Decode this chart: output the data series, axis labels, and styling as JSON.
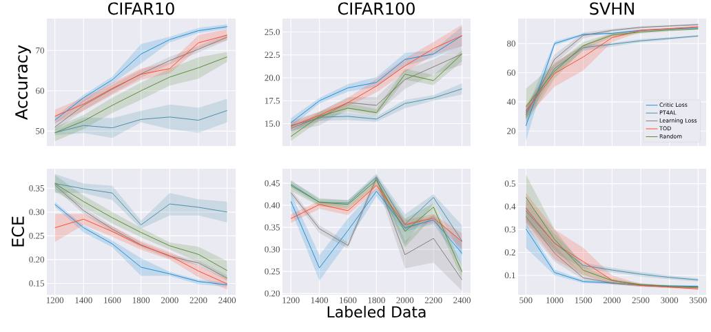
{
  "chart_data": [
    {
      "type": "line",
      "title": "CIFAR10",
      "ylabel": "Accuracy",
      "grid": true,
      "marker": "none",
      "line_style": "solid",
      "tick_labels": "y",
      "legend": false,
      "x": [
        1200,
        1400,
        1600,
        1800,
        2000,
        2200,
        2400
      ],
      "xlim": [
        1144,
        2459
      ],
      "xticks": [
        1200,
        1400,
        1600,
        1800,
        2000,
        2200,
        2400
      ],
      "ylim": [
        46.3,
        77.9
      ],
      "yticks": [
        50,
        60,
        70
      ],
      "series": [
        {
          "color": "#1f8fd8",
          "values": [
            52.7,
            58.3,
            62.7,
            69.1,
            72.7,
            74.9,
            75.9
          ],
          "lower": [
            51.8,
            57.3,
            61.8,
            66.8,
            72.0,
            74.3,
            75.4
          ],
          "upper": [
            53.5,
            59.0,
            63.5,
            71.6,
            73.4,
            75.6,
            76.5
          ]
        },
        {
          "color": "#4c8fa8",
          "values": [
            49.6,
            51.4,
            50.8,
            52.9,
            53.5,
            52.7,
            55.1
          ],
          "lower": [
            49.0,
            49.5,
            48.3,
            52.2,
            50.5,
            49.6,
            52.2
          ],
          "upper": [
            50.3,
            53.4,
            53.2,
            55.0,
            56.6,
            55.8,
            58.0
          ]
        },
        {
          "color": "#808080",
          "values": [
            51.0,
            56.4,
            60.4,
            64.2,
            67.5,
            70.3,
            73.3
          ],
          "lower": [
            50.0,
            55.2,
            59.3,
            63.2,
            66.6,
            69.5,
            72.5
          ],
          "upper": [
            52.0,
            57.6,
            61.5,
            65.2,
            68.4,
            71.1,
            74.1
          ]
        },
        {
          "color": "#ff4c2c",
          "values": [
            53.7,
            56.7,
            60.6,
            64.1,
            65.5,
            71.9,
            73.8
          ],
          "lower": [
            52.0,
            55.0,
            59.0,
            62.7,
            64.3,
            70.5,
            72.5
          ],
          "upper": [
            55.3,
            58.3,
            62.0,
            65.5,
            67.0,
            73.8,
            75.3
          ]
        },
        {
          "color": "#5b8c3a",
          "values": [
            49.6,
            52.5,
            56.4,
            60.0,
            63.4,
            65.7,
            68.4
          ],
          "lower": [
            47.5,
            50.5,
            54.5,
            57.8,
            61.3,
            63.0,
            67.2
          ],
          "upper": [
            51.0,
            54.0,
            58.3,
            62.0,
            65.5,
            68.3,
            69.6
          ]
        }
      ]
    },
    {
      "type": "line",
      "title": "CIFAR100",
      "grid": true,
      "marker": "none",
      "line_style": "solid",
      "tick_labels": "y",
      "legend": false,
      "x": [
        1200,
        1400,
        1600,
        1800,
        2000,
        2200,
        2400
      ],
      "xlim": [
        1141,
        2460
      ],
      "xticks": [
        1200,
        1400,
        1600,
        1800,
        2000,
        2200,
        2400
      ],
      "ylim": [
        12.56,
        26.46
      ],
      "yticks": [
        {
          "value": 15,
          "label": "15.0"
        },
        {
          "value": 17.5,
          "label": "17.5"
        },
        {
          "value": 20,
          "label": "20.0"
        },
        {
          "value": 22.5,
          "label": "22.5"
        },
        {
          "value": 25,
          "label": "25.0"
        }
      ],
      "series": [
        {
          "color": "#1f8fd8",
          "values": [
            15.1,
            17.5,
            18.9,
            19.5,
            22.0,
            22.6,
            24.6
          ],
          "lower": [
            14.6,
            17.2,
            18.5,
            19.0,
            21.3,
            22.2,
            23.5
          ],
          "upper": [
            15.6,
            17.8,
            19.3,
            20.1,
            22.7,
            23.0,
            25.6
          ]
        },
        {
          "color": "#4c8fa8",
          "values": [
            14.5,
            15.7,
            15.8,
            15.5,
            17.2,
            17.8,
            18.8
          ],
          "lower": [
            14.1,
            15.3,
            15.4,
            15.2,
            16.7,
            17.5,
            18.2
          ],
          "upper": [
            14.9,
            16.0,
            16.2,
            15.8,
            17.6,
            18.1,
            19.4
          ]
        },
        {
          "color": "#808080",
          "values": [
            14.8,
            15.6,
            17.3,
            17.0,
            19.8,
            21.2,
            22.6
          ],
          "lower": [
            14.2,
            14.8,
            16.6,
            16.1,
            18.8,
            20.4,
            21.4
          ],
          "upper": [
            15.3,
            16.3,
            17.9,
            17.9,
            20.8,
            22.0,
            23.6
          ]
        },
        {
          "color": "#ff4c2c",
          "values": [
            14.7,
            15.9,
            17.3,
            19.1,
            21.3,
            23.2,
            24.6
          ],
          "lower": [
            14.2,
            15.5,
            16.9,
            18.4,
            20.6,
            22.5,
            23.5
          ],
          "upper": [
            15.1,
            16.3,
            17.8,
            19.9,
            22.1,
            23.9,
            25.8
          ]
        },
        {
          "color": "#5b8c3a",
          "values": [
            13.6,
            15.8,
            16.7,
            16.2,
            20.4,
            19.7,
            22.6
          ],
          "lower": [
            13.1,
            15.3,
            16.3,
            15.8,
            19.8,
            19.2,
            21.8
          ],
          "upper": [
            14.1,
            16.3,
            17.2,
            16.6,
            21.0,
            20.3,
            23.0
          ]
        }
      ]
    },
    {
      "type": "line",
      "title": "SVHN",
      "grid": true,
      "marker": "none",
      "line_style": "solid",
      "tick_labels": "y",
      "legend": "bottom right",
      "x": [
        500,
        1000,
        1500,
        2000,
        2500,
        3000,
        3500
      ],
      "xlim": [
        364,
        3640
      ],
      "xticks": [
        500,
        1000,
        1500,
        2000,
        2500,
        3000,
        3500
      ],
      "ylim": [
        9.7,
        97.1
      ],
      "yticks": [
        20,
        40,
        60,
        80
      ],
      "series": [
        {
          "name": "Critic Loss",
          "color": "#1f8fd8",
          "values": [
            23.5,
            80,
            86.2,
            87,
            89,
            90,
            90.7
          ],
          "lower": [
            13,
            78.5,
            85.5,
            86.3,
            88.4,
            89.5,
            90.2
          ],
          "upper": [
            34,
            81.5,
            86.9,
            87.7,
            89.6,
            90.5,
            91.2
          ]
        },
        {
          "name": "PT4AL",
          "color": "#4c8fa8",
          "values": [
            32.6,
            62.9,
            77.2,
            79.5,
            81.9,
            83.5,
            85.2
          ],
          "lower": [
            28,
            59,
            75,
            77.8,
            80.8,
            82.7,
            84.5
          ],
          "upper": [
            37,
            66,
            79,
            80.6,
            83,
            84.3,
            85.9
          ]
        },
        {
          "name": "Learning Loss",
          "color": "#808080",
          "values": [
            31,
            69.3,
            85.6,
            89,
            91.1,
            92,
            93
          ],
          "lower": [
            27,
            66,
            83.5,
            88,
            90.3,
            91.5,
            92.3
          ],
          "upper": [
            35,
            72.5,
            87.5,
            90,
            91.9,
            92.7,
            93.7
          ]
        },
        {
          "name": "TOD",
          "color": "#ff4c2c",
          "values": [
            33.9,
            59.5,
            70.8,
            84,
            89,
            90.2,
            91.5
          ],
          "lower": [
            29,
            50.5,
            61.5,
            81,
            88,
            89.5,
            90.8
          ],
          "upper": [
            38,
            67,
            79,
            87,
            90,
            90.9,
            92.2
          ]
        },
        {
          "name": "Random",
          "color": "#5b8c3a",
          "values": [
            36.7,
            61,
            78.6,
            85.8,
            87.9,
            89.2,
            90
          ],
          "lower": [
            25,
            56,
            76,
            84.3,
            86.8,
            88.4,
            89.4
          ],
          "upper": [
            49,
            66,
            81,
            87.3,
            89,
            90,
            90.6
          ]
        }
      ]
    },
    {
      "type": "line",
      "ylabel": "ECE",
      "grid": true,
      "marker": "none",
      "line_style": "solid",
      "legend": false,
      "x": [
        1200,
        1400,
        1600,
        1800,
        2000,
        2200,
        2400
      ],
      "xlim": [
        1144,
        2459
      ],
      "xticks": [
        1200,
        1400,
        1600,
        1800,
        2000,
        2200,
        2400
      ],
      "ylim": [
        0.126,
        0.391
      ],
      "yticks": [
        0.15,
        {
          "value": 0.2,
          "label": "0.20"
        },
        0.25,
        {
          "value": 0.3,
          "label": "0.30"
        },
        0.35
      ],
      "series": [
        {
          "color": "#1f8fd8",
          "values": [
            0.316,
            0.267,
            0.233,
            0.184,
            0.17,
            0.154,
            0.147
          ],
          "lower": [
            0.311,
            0.257,
            0.226,
            0.166,
            0.166,
            0.148,
            0.143
          ],
          "upper": [
            0.321,
            0.272,
            0.24,
            0.203,
            0.174,
            0.158,
            0.152
          ]
        },
        {
          "color": "#4c8fa8",
          "values": [
            0.36,
            0.349,
            0.34,
            0.273,
            0.317,
            0.31,
            0.3
          ],
          "lower": [
            0.34,
            0.34,
            0.325,
            0.265,
            0.293,
            0.293,
            0.278
          ],
          "upper": [
            0.38,
            0.36,
            0.355,
            0.282,
            0.34,
            0.327,
            0.322
          ]
        },
        {
          "color": "#808080",
          "values": [
            0.357,
            0.303,
            0.264,
            0.231,
            0.207,
            0.193,
            0.161
          ],
          "lower": [
            0.35,
            0.296,
            0.258,
            0.226,
            0.202,
            0.188,
            0.155
          ],
          "upper": [
            0.364,
            0.31,
            0.27,
            0.236,
            0.212,
            0.198,
            0.167
          ]
        },
        {
          "color": "#ff4c2c",
          "values": [
            0.267,
            0.285,
            0.259,
            0.23,
            0.208,
            0.176,
            0.149
          ],
          "lower": [
            0.237,
            0.273,
            0.248,
            0.221,
            0.2,
            0.163,
            0.137
          ],
          "upper": [
            0.296,
            0.296,
            0.27,
            0.239,
            0.216,
            0.188,
            0.16
          ]
        },
        {
          "color": "#5b8c3a",
          "values": [
            0.36,
            0.322,
            0.288,
            0.257,
            0.229,
            0.211,
            0.177
          ],
          "lower": [
            0.343,
            0.31,
            0.276,
            0.247,
            0.221,
            0.195,
            0.158
          ],
          "upper": [
            0.378,
            0.335,
            0.3,
            0.267,
            0.236,
            0.227,
            0.197
          ]
        }
      ]
    },
    {
      "type": "line",
      "xlabel": "Labeled Data",
      "grid": true,
      "marker": "none",
      "line_style": "solid",
      "legend": false,
      "x": [
        1200,
        1400,
        1600,
        1800,
        2000,
        2200,
        2400
      ],
      "xlim": [
        1141,
        2460
      ],
      "xticks": [
        1200,
        1400,
        1600,
        1800,
        2000,
        2200,
        2400
      ],
      "ylim": [
        0.197,
        0.483
      ],
      "yticks": [
        {
          "value": 0.2,
          "label": "0.20"
        },
        0.25,
        {
          "value": 0.3,
          "label": "0.30"
        },
        0.35,
        {
          "value": 0.4,
          "label": "0.40"
        },
        0.45
      ],
      "series": [
        {
          "color": "#1f8fd8",
          "values": [
            0.409,
            0.258,
            0.343,
            0.432,
            0.349,
            0.367,
            0.291
          ],
          "lower": [
            0.39,
            0.229,
            0.318,
            0.42,
            0.34,
            0.358,
            0.265
          ],
          "upper": [
            0.428,
            0.287,
            0.37,
            0.44,
            0.358,
            0.376,
            0.318
          ]
        },
        {
          "color": "#4c8fa8",
          "values": [
            0.448,
            0.407,
            0.405,
            0.464,
            0.357,
            0.418,
            0.319
          ],
          "lower": [
            0.44,
            0.4,
            0.398,
            0.455,
            0.31,
            0.405,
            0.285
          ],
          "upper": [
            0.456,
            0.414,
            0.412,
            0.472,
            0.38,
            0.425,
            0.355
          ]
        },
        {
          "color": "#808080",
          "values": [
            0.429,
            0.347,
            0.309,
            0.462,
            0.288,
            0.325,
            0.231
          ],
          "lower": [
            0.422,
            0.337,
            0.302,
            0.452,
            0.257,
            0.27,
            0.206
          ],
          "upper": [
            0.436,
            0.355,
            0.316,
            0.47,
            0.318,
            0.38,
            0.255
          ]
        },
        {
          "color": "#ff4c2c",
          "values": [
            0.37,
            0.402,
            0.388,
            0.445,
            0.356,
            0.371,
            0.318
          ],
          "lower": [
            0.36,
            0.392,
            0.378,
            0.435,
            0.345,
            0.362,
            0.3
          ],
          "upper": [
            0.38,
            0.41,
            0.398,
            0.455,
            0.367,
            0.38,
            0.336
          ]
        },
        {
          "color": "#5b8c3a",
          "values": [
            0.445,
            0.407,
            0.402,
            0.457,
            0.341,
            0.396,
            0.249
          ],
          "lower": [
            0.433,
            0.398,
            0.392,
            0.445,
            0.305,
            0.375,
            0.235
          ],
          "upper": [
            0.457,
            0.416,
            0.412,
            0.467,
            0.37,
            0.405,
            0.265
          ]
        }
      ]
    },
    {
      "type": "line",
      "grid": true,
      "marker": "none",
      "line_style": "solid",
      "legend": false,
      "x": [
        500,
        1000,
        1500,
        2000,
        2500,
        3000,
        3500
      ],
      "xlim": [
        364,
        3640
      ],
      "xticks": [
        500,
        1000,
        1500,
        2000,
        2500,
        3000,
        3500
      ],
      "ylim": [
        0.015,
        0.565
      ],
      "yticks": [
        0.1,
        0.2,
        0.3,
        0.4,
        0.5
      ],
      "series": [
        {
          "color": "#1f8fd8",
          "values": [
            0.303,
            0.112,
            0.073,
            0.066,
            0.057,
            0.054,
            0.052
          ],
          "lower": [
            0.22,
            0.1,
            0.066,
            0.061,
            0.052,
            0.05,
            0.048
          ],
          "upper": [
            0.33,
            0.125,
            0.08,
            0.071,
            0.062,
            0.058,
            0.056
          ]
        },
        {
          "color": "#4c8fa8",
          "values": [
            0.381,
            0.241,
            0.143,
            0.123,
            0.105,
            0.091,
            0.08
          ],
          "lower": [
            0.33,
            0.2,
            0.13,
            0.113,
            0.095,
            0.083,
            0.073
          ],
          "upper": [
            0.43,
            0.28,
            0.155,
            0.133,
            0.115,
            0.099,
            0.087
          ]
        },
        {
          "color": "#808080",
          "values": [
            0.356,
            0.196,
            0.089,
            0.067,
            0.056,
            0.049,
            0.047
          ],
          "lower": [
            0.31,
            0.16,
            0.08,
            0.062,
            0.05,
            0.045,
            0.043
          ],
          "upper": [
            0.4,
            0.23,
            0.098,
            0.072,
            0.062,
            0.053,
            0.051
          ]
        },
        {
          "color": "#ff4c2c",
          "values": [
            0.393,
            0.239,
            0.16,
            0.079,
            0.056,
            0.049,
            0.041
          ],
          "lower": [
            0.33,
            0.17,
            0.1,
            0.06,
            0.05,
            0.044,
            0.036
          ],
          "upper": [
            0.46,
            0.3,
            0.22,
            0.1,
            0.062,
            0.054,
            0.046
          ]
        },
        {
          "color": "#5b8c3a",
          "values": [
            0.44,
            0.256,
            0.122,
            0.077,
            0.06,
            0.052,
            0.049
          ],
          "lower": [
            0.34,
            0.21,
            0.1,
            0.07,
            0.055,
            0.048,
            0.045
          ],
          "upper": [
            0.54,
            0.3,
            0.14,
            0.085,
            0.066,
            0.056,
            0.053
          ]
        }
      ]
    }
  ]
}
